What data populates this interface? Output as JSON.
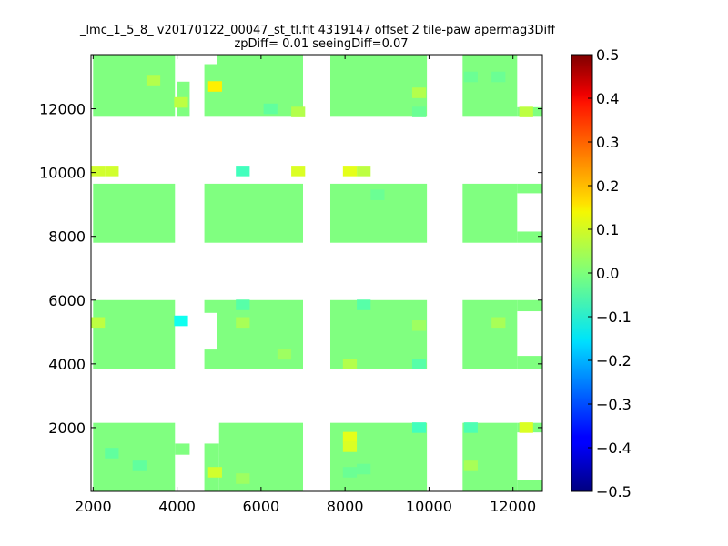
{
  "chart_data": {
    "type": "heatmap",
    "title": "_lmc_1_5_8_ v20170122_00047_st_tl.fit 4319147 offset 2 tile-paw apermag3Diff",
    "subtitle": "zpDiff= 0.01 seeingDiff=0.07",
    "xlabel": "",
    "ylabel": "",
    "xlim": [
      1950,
      12700
    ],
    "ylim": [
      0,
      13700
    ],
    "xticks": [
      2000,
      4000,
      6000,
      8000,
      10000,
      12000
    ],
    "yticks": [
      2000,
      4000,
      6000,
      8000,
      10000,
      12000
    ],
    "grid": false,
    "colormap": "jet",
    "colorbar": {
      "range": [
        -0.5,
        0.5
      ],
      "ticks": [
        0.5,
        0.4,
        0.3,
        0.2,
        0.1,
        0.0,
        -0.1,
        -0.2,
        -0.3,
        -0.4,
        -0.5
      ],
      "tick_labels": [
        "0.5",
        "0.4",
        "0.3",
        "0.2",
        "0.1",
        "0.0",
        "−0.1",
        "−0.2",
        "−0.3",
        "−0.4",
        "−0.5"
      ]
    },
    "cell_size": [
      330,
      330
    ],
    "default_value": 0.0,
    "x_column_centers": [
      2115,
      2445,
      2775,
      3105,
      3435,
      3765,
      4095,
      4905,
      5235,
      5565,
      5895,
      6225,
      6555,
      6885,
      8115,
      8445,
      8775,
      9105,
      9435,
      9765,
      10995,
      11325,
      11655,
      11985,
      12315,
      12645
    ],
    "tiles": [
      {
        "x": [
          2000,
          3950
        ],
        "y": [
          11750,
          13700
        ]
      },
      {
        "x": [
          4000,
          4300
        ],
        "y": [
          11750,
          12850
        ]
      },
      {
        "x": [
          4650,
          4950
        ],
        "y": [
          11750,
          13400
        ]
      },
      {
        "x": [
          4950,
          7000
        ],
        "y": [
          11750,
          13700
        ]
      },
      {
        "x": [
          7650,
          9950
        ],
        "y": [
          11750,
          13700
        ]
      },
      {
        "x": [
          10800,
          12100
        ],
        "y": [
          11750,
          13700
        ]
      },
      {
        "x": [
          12100,
          12700
        ],
        "y": [
          11750,
          12050
        ]
      },
      {
        "x": [
          2000,
          3950
        ],
        "y": [
          7800,
          9650
        ]
      },
      {
        "x": [
          4650,
          7000
        ],
        "y": [
          7800,
          9650
        ]
      },
      {
        "x": [
          7650,
          9950
        ],
        "y": [
          7800,
          9650
        ]
      },
      {
        "x": [
          10800,
          12100
        ],
        "y": [
          7800,
          9650
        ]
      },
      {
        "x": [
          12100,
          12700
        ],
        "y": [
          7800,
          8150
        ]
      },
      {
        "x": [
          12100,
          12700
        ],
        "y": [
          9350,
          9650
        ]
      },
      {
        "x": [
          2000,
          3950
        ],
        "y": [
          3850,
          6000
        ]
      },
      {
        "x": [
          4650,
          4950
        ],
        "y": [
          3850,
          4450
        ]
      },
      {
        "x": [
          4650,
          4950
        ],
        "y": [
          5600,
          6000
        ]
      },
      {
        "x": [
          4950,
          7000
        ],
        "y": [
          3850,
          6000
        ]
      },
      {
        "x": [
          7650,
          9950
        ],
        "y": [
          3850,
          6000
        ]
      },
      {
        "x": [
          10800,
          12100
        ],
        "y": [
          3850,
          6000
        ]
      },
      {
        "x": [
          12100,
          12700
        ],
        "y": [
          3850,
          4250
        ]
      },
      {
        "x": [
          12100,
          12700
        ],
        "y": [
          5650,
          6000
        ]
      },
      {
        "x": [
          2000,
          3950
        ],
        "y": [
          0,
          2150
        ]
      },
      {
        "x": [
          3950,
          4300
        ],
        "y": [
          1150,
          1500
        ]
      },
      {
        "x": [
          4650,
          5000
        ],
        "y": [
          0,
          1500
        ]
      },
      {
        "x": [
          5000,
          7000
        ],
        "y": [
          0,
          2150
        ]
      },
      {
        "x": [
          7650,
          9950
        ],
        "y": [
          0,
          2150
        ]
      },
      {
        "x": [
          10800,
          12100
        ],
        "y": [
          0,
          2150
        ]
      },
      {
        "x": [
          12100,
          12700
        ],
        "y": [
          0,
          350
        ]
      },
      {
        "x": [
          12100,
          12700
        ],
        "y": [
          1850,
          2150
        ]
      }
    ],
    "cells": [
      {
        "x": 4800,
        "y": 12700,
        "value": 0.14
      },
      {
        "x": 2150,
        "y": 10050,
        "value": 0.08
      },
      {
        "x": 2500,
        "y": 10050,
        "value": 0.08
      },
      {
        "x": 5700,
        "y": 10050,
        "value": -0.06
      },
      {
        "x": 6900,
        "y": 10050,
        "value": 0.09
      },
      {
        "x": 8200,
        "y": 10050,
        "value": 0.1
      },
      {
        "x": 8500,
        "y": 10050,
        "value": 0.06
      },
      {
        "x": 12350,
        "y": 11900,
        "value": 0.06
      },
      {
        "x": 4200,
        "y": 5350,
        "value": -0.11
      },
      {
        "x": 5700,
        "y": 5850,
        "value": -0.04
      },
      {
        "x": 8600,
        "y": 5850,
        "value": -0.04
      },
      {
        "x": 7850,
        "y": 4000,
        "value": 0.05
      },
      {
        "x": 9800,
        "y": 4000,
        "value": -0.04
      },
      {
        "x": 9800,
        "y": 2000,
        "value": -0.06
      },
      {
        "x": 11000,
        "y": 2000,
        "value": -0.05
      },
      {
        "x": 12250,
        "y": 2000,
        "value": 0.09
      },
      {
        "x": 7850,
        "y": 1700,
        "value": 0.1
      },
      {
        "x": 7850,
        "y": 1400,
        "value": 0.09
      },
      {
        "x": 4800,
        "y": 600,
        "value": 0.08
      },
      {
        "x": 7850,
        "y": 600,
        "value": -0.02
      },
      {
        "x": 2600,
        "y": 1200,
        "value": -0.03
      },
      {
        "x": 3300,
        "y": 12900,
        "value": 0.05
      },
      {
        "x": 4200,
        "y": 12200,
        "value": 0.06
      },
      {
        "x": 6200,
        "y": 12000,
        "value": -0.03
      },
      {
        "x": 6800,
        "y": 11900,
        "value": 0.05
      },
      {
        "x": 9800,
        "y": 12500,
        "value": 0.05
      },
      {
        "x": 9700,
        "y": 11900,
        "value": -0.02
      },
      {
        "x": 11000,
        "y": 13000,
        "value": -0.02
      },
      {
        "x": 11600,
        "y": 13000,
        "value": -0.02
      },
      {
        "x": 8900,
        "y": 9300,
        "value": -0.02
      },
      {
        "x": 5500,
        "y": 5300,
        "value": 0.04
      },
      {
        "x": 2200,
        "y": 5300,
        "value": 0.06
      },
      {
        "x": 9700,
        "y": 5200,
        "value": 0.03
      },
      {
        "x": 11500,
        "y": 5300,
        "value": 0.04
      },
      {
        "x": 6500,
        "y": 4300,
        "value": 0.03
      },
      {
        "x": 3000,
        "y": 800,
        "value": -0.03
      },
      {
        "x": 8500,
        "y": 700,
        "value": -0.02
      },
      {
        "x": 11000,
        "y": 800,
        "value": 0.04
      },
      {
        "x": 5500,
        "y": 400,
        "value": 0.03
      }
    ]
  }
}
